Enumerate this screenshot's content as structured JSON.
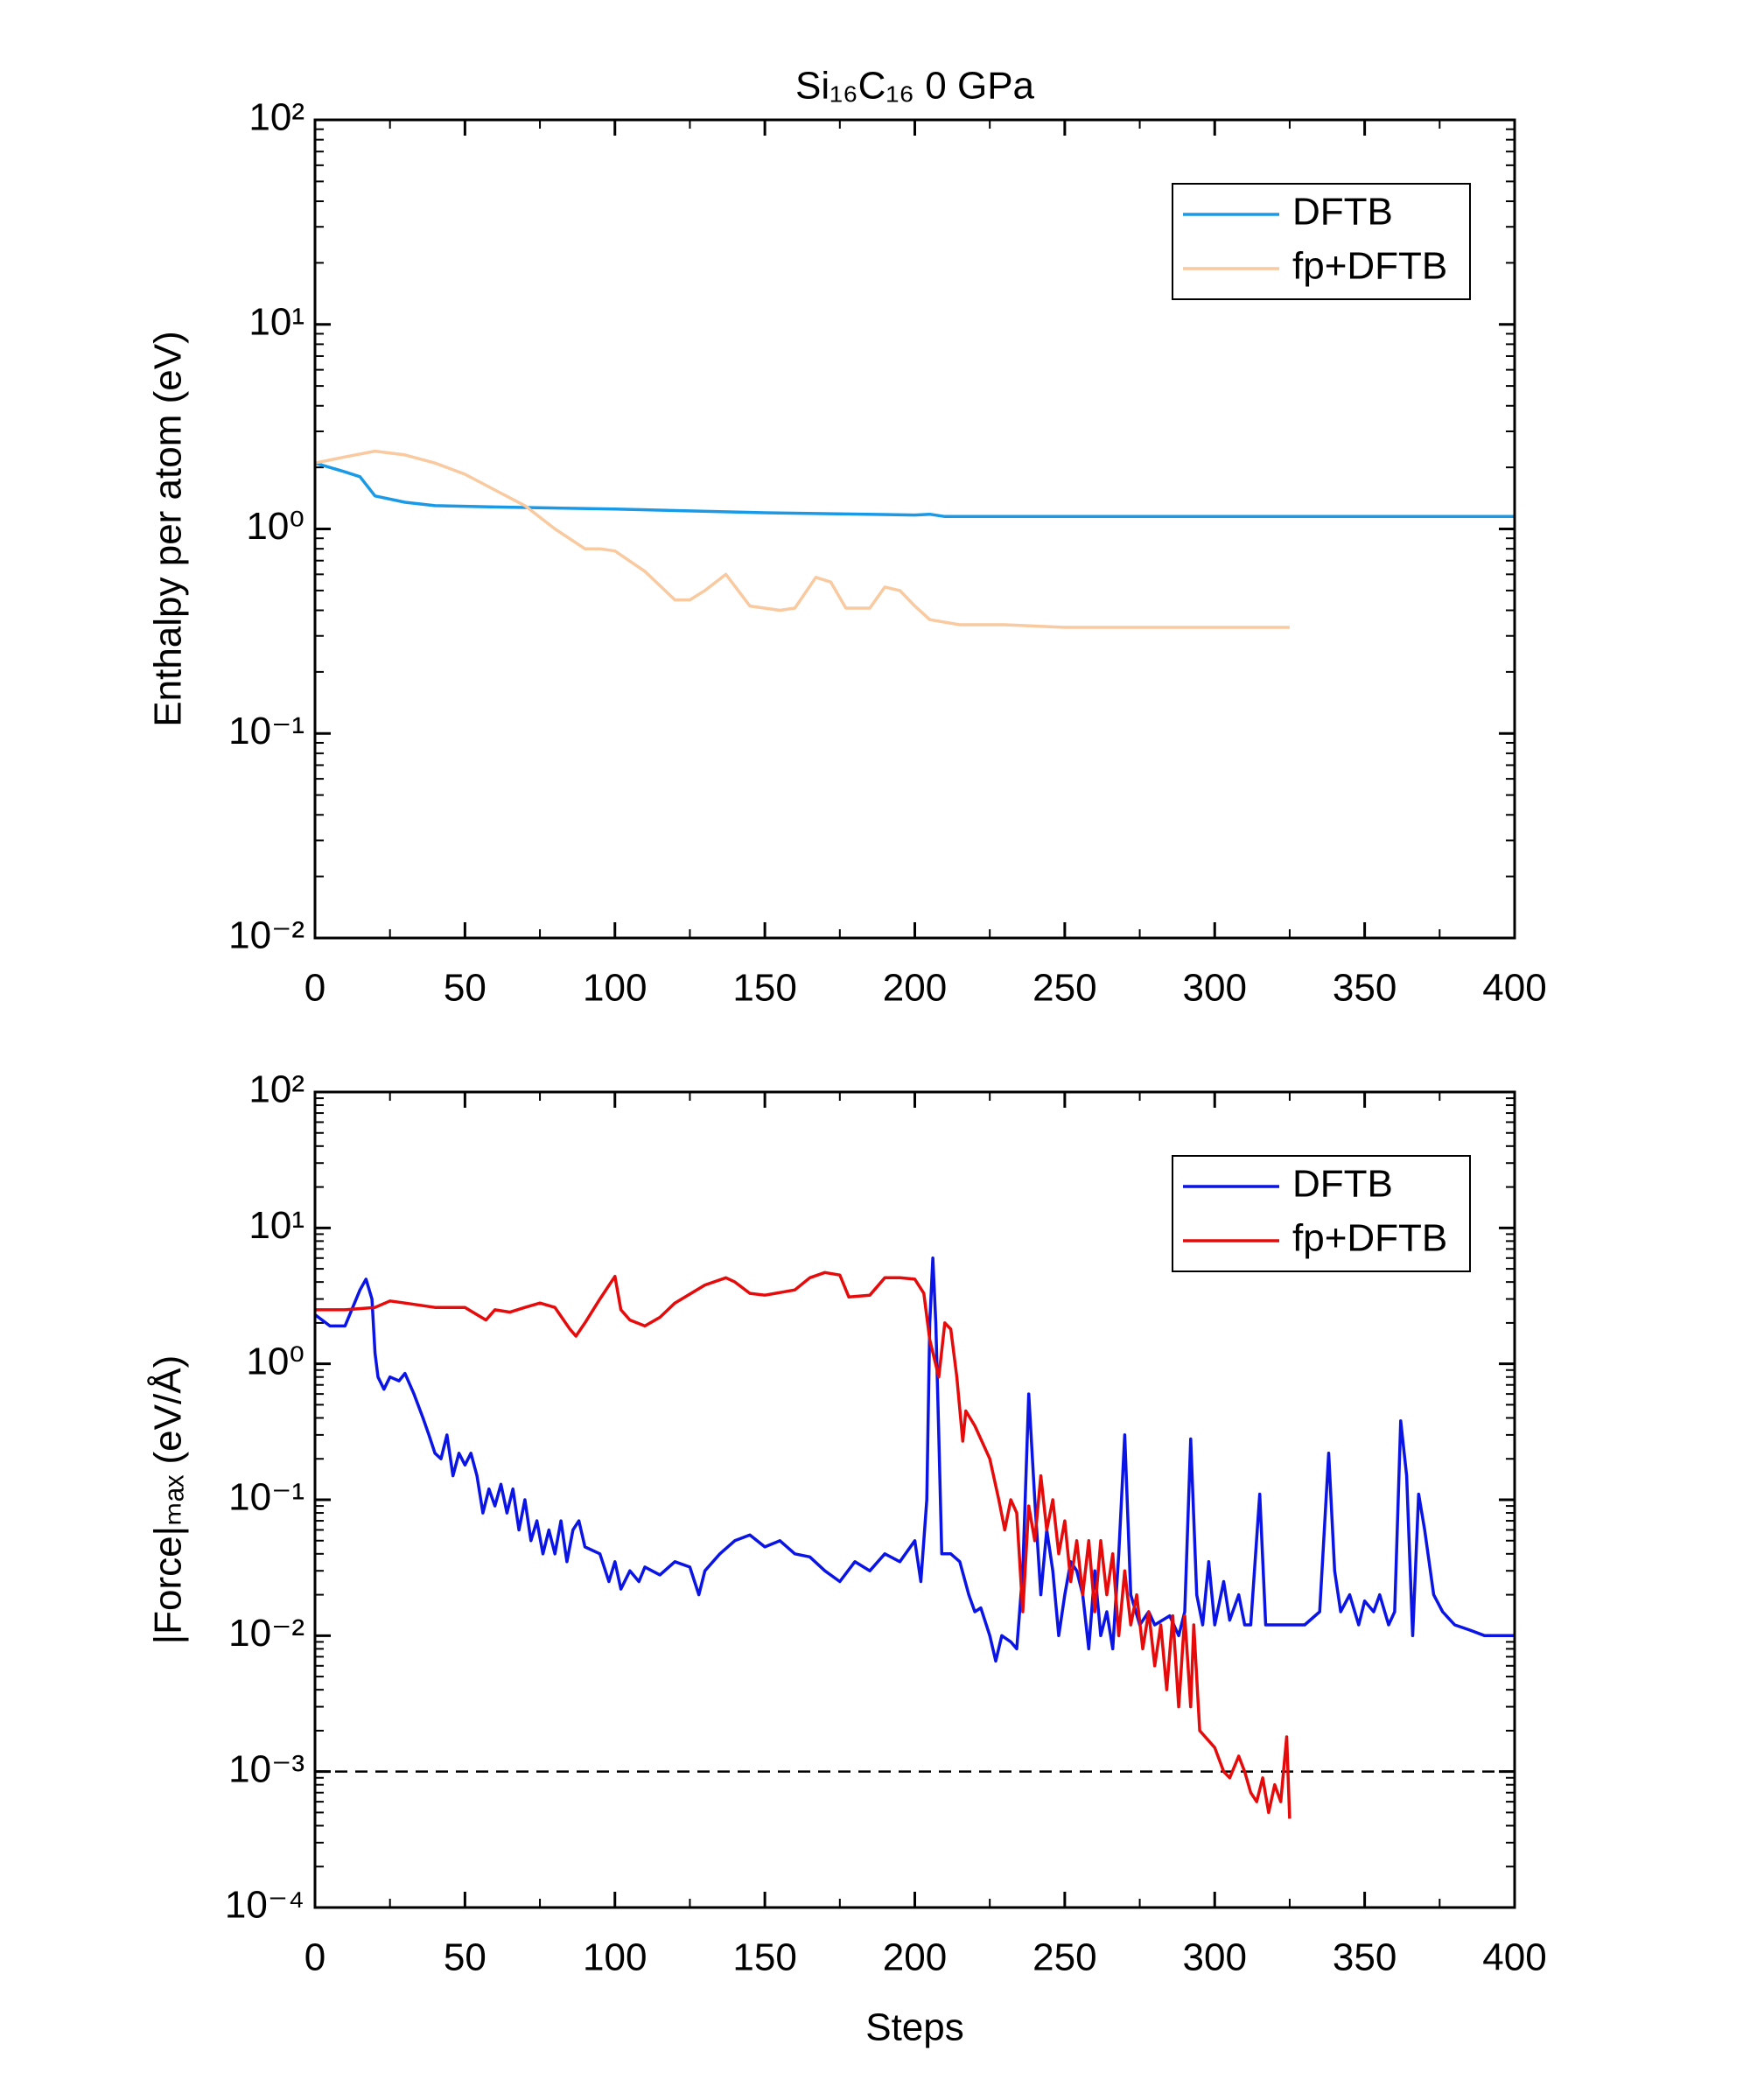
{
  "chart_data": [
    {
      "type": "line",
      "title": "Si₁₆C₁₆ 0 GPa",
      "y_label": "Enthalpy per atom (eV)",
      "log_y": true,
      "legend": "upper right",
      "xlim": [
        0,
        400
      ],
      "xticks": [
        0,
        50,
        100,
        150,
        200,
        250,
        300,
        350,
        400
      ],
      "ylim": [
        0.01,
        100
      ],
      "yticks": [
        {
          "value": 0.01,
          "label": "10⁻²"
        },
        {
          "value": 0.1,
          "label": "10⁻¹"
        },
        {
          "value": 1,
          "label": "10⁰"
        },
        {
          "value": 10,
          "label": "10¹"
        },
        {
          "value": 100,
          "label": "10²"
        }
      ],
      "series": [
        {
          "name": "DFTB",
          "color": "#1a9ae6",
          "x": [
            0,
            10,
            15,
            20,
            30,
            40,
            60,
            100,
            150,
            200,
            205,
            210,
            250,
            300,
            350,
            400
          ],
          "values": [
            2.1,
            1.9,
            1.8,
            1.45,
            1.35,
            1.3,
            1.28,
            1.25,
            1.2,
            1.17,
            1.18,
            1.15,
            1.15,
            1.15,
            1.15,
            1.15
          ]
        },
        {
          "name": "fp+DFTB",
          "color": "#f9c9a0",
          "x": [
            0,
            10,
            20,
            30,
            40,
            50,
            60,
            70,
            80,
            90,
            95,
            100,
            110,
            120,
            125,
            130,
            137,
            145,
            155,
            160,
            167,
            172,
            177,
            185,
            190,
            195,
            200,
            205,
            215,
            230,
            250,
            300,
            325
          ],
          "values": [
            2.1,
            2.25,
            2.4,
            2.3,
            2.1,
            1.85,
            1.55,
            1.3,
            1.0,
            0.8,
            0.8,
            0.78,
            0.62,
            0.45,
            0.45,
            0.5,
            0.6,
            0.42,
            0.4,
            0.41,
            0.58,
            0.55,
            0.41,
            0.41,
            0.52,
            0.5,
            0.42,
            0.36,
            0.34,
            0.34,
            0.33,
            0.33,
            0.33
          ]
        }
      ]
    },
    {
      "type": "line",
      "y_label": "|Force|ₘₐₓ (eV/Å)",
      "x_label": "Steps",
      "log_y": true,
      "legend": "upper right",
      "xlim": [
        0,
        400
      ],
      "xticks": [
        0,
        50,
        100,
        150,
        200,
        250,
        300,
        350,
        400
      ],
      "ylim": [
        0.0001,
        100
      ],
      "yticks": [
        {
          "value": 0.0001,
          "label": "10⁻⁴"
        },
        {
          "value": 0.001,
          "label": "10⁻³"
        },
        {
          "value": 0.01,
          "label": "10⁻²"
        },
        {
          "value": 0.1,
          "label": "10⁻¹"
        },
        {
          "value": 1,
          "label": "10⁰"
        },
        {
          "value": 10,
          "label": "10¹"
        },
        {
          "value": 100,
          "label": "10²"
        }
      ],
      "reference_line": 0.001,
      "series": [
        {
          "name": "DFTB",
          "color": "#0a14e6",
          "x": [
            0,
            5,
            10,
            15,
            17,
            19,
            20,
            21,
            23,
            25,
            28,
            30,
            33,
            36,
            38,
            40,
            42,
            44,
            46,
            48,
            50,
            52,
            54,
            56,
            58,
            60,
            62,
            64,
            66,
            68,
            70,
            72,
            74,
            76,
            78,
            80,
            82,
            84,
            86,
            88,
            90,
            95,
            98,
            100,
            102,
            105,
            108,
            110,
            115,
            120,
            125,
            128,
            130,
            135,
            140,
            145,
            150,
            155,
            160,
            165,
            170,
            175,
            180,
            185,
            190,
            195,
            200,
            202,
            204,
            205,
            206,
            207,
            208,
            209,
            212,
            215,
            218,
            220,
            222,
            225,
            227,
            229,
            232,
            234,
            236,
            238,
            240,
            242,
            244,
            246,
            248,
            250,
            252,
            254,
            256,
            258,
            260,
            262,
            264,
            266,
            268,
            270,
            272,
            275,
            278,
            280,
            285,
            288,
            290,
            292,
            294,
            296,
            298,
            300,
            303,
            305,
            308,
            310,
            312,
            315,
            317,
            320,
            325,
            330,
            335,
            338,
            340,
            342,
            345,
            348,
            350,
            353,
            355,
            358,
            360,
            362,
            364,
            366,
            368,
            370,
            373,
            376,
            380,
            385,
            390,
            395,
            400
          ],
          "values": [
            2.3,
            1.9,
            1.9,
            3.5,
            4.2,
            3,
            1.2,
            0.8,
            0.65,
            0.8,
            0.75,
            0.85,
            0.6,
            0.4,
            0.3,
            0.22,
            0.2,
            0.3,
            0.15,
            0.22,
            0.18,
            0.22,
            0.15,
            0.08,
            0.12,
            0.09,
            0.13,
            0.08,
            0.12,
            0.06,
            0.1,
            0.05,
            0.07,
            0.04,
            0.06,
            0.04,
            0.07,
            0.035,
            0.06,
            0.07,
            0.045,
            0.04,
            0.025,
            0.035,
            0.022,
            0.03,
            0.025,
            0.032,
            0.028,
            0.035,
            0.032,
            0.02,
            0.03,
            0.04,
            0.05,
            0.055,
            0.045,
            0.05,
            0.04,
            0.038,
            0.03,
            0.025,
            0.035,
            0.03,
            0.04,
            0.035,
            0.05,
            0.025,
            0.1,
            2,
            6,
            2,
            0.3,
            0.04,
            0.04,
            0.035,
            0.02,
            0.015,
            0.016,
            0.01,
            0.0065,
            0.01,
            0.009,
            0.008,
            0.03,
            0.6,
            0.1,
            0.02,
            0.06,
            0.03,
            0.01,
            0.02,
            0.035,
            0.03,
            0.02,
            0.008,
            0.03,
            0.01,
            0.015,
            0.008,
            0.04,
            0.3,
            0.02,
            0.012,
            0.015,
            0.012,
            0.014,
            0.01,
            0.015,
            0.28,
            0.02,
            0.012,
            0.035,
            0.012,
            0.025,
            0.013,
            0.02,
            0.012,
            0.012,
            0.11,
            0.012,
            0.012,
            0.012,
            0.012,
            0.015,
            0.22,
            0.03,
            0.015,
            0.02,
            0.012,
            0.018,
            0.015,
            0.02,
            0.012,
            0.015,
            0.38,
            0.15,
            0.01,
            0.11,
            0.06,
            0.02,
            0.015,
            0.012,
            0.011,
            0.01,
            0.01,
            0.01
          ]
        },
        {
          "name": "fp+DFTB",
          "color": "#e60a0a",
          "x": [
            0,
            10,
            20,
            25,
            30,
            40,
            50,
            57,
            60,
            65,
            70,
            75,
            80,
            85,
            87,
            90,
            95,
            100,
            102,
            105,
            110,
            115,
            120,
            130,
            137,
            140,
            145,
            150,
            160,
            165,
            170,
            175,
            178,
            185,
            190,
            195,
            200,
            203,
            205,
            208,
            210,
            212,
            214,
            216,
            217,
            220,
            225,
            228,
            230,
            232,
            234,
            236,
            238,
            240,
            242,
            244,
            246,
            248,
            250,
            252,
            254,
            256,
            258,
            260,
            262,
            264,
            266,
            268,
            270,
            272,
            274,
            276,
            278,
            280,
            282,
            284,
            286,
            288,
            290,
            292,
            293,
            295,
            300,
            303,
            305,
            308,
            310,
            312,
            314,
            316,
            318,
            320,
            322,
            324,
            325
          ],
          "values": [
            2.5,
            2.5,
            2.6,
            2.9,
            2.8,
            2.6,
            2.6,
            2.1,
            2.5,
            2.4,
            2.6,
            2.8,
            2.6,
            1.8,
            1.6,
            2.0,
            3.0,
            4.4,
            2.5,
            2.1,
            1.9,
            2.2,
            2.8,
            3.8,
            4.3,
            4.0,
            3.3,
            3.2,
            3.5,
            4.3,
            4.7,
            4.5,
            3.1,
            3.2,
            4.3,
            4.3,
            4.2,
            3.3,
            1.5,
            0.8,
            2.0,
            1.8,
            0.8,
            0.27,
            0.45,
            0.35,
            0.2,
            0.1,
            0.06,
            0.1,
            0.08,
            0.015,
            0.09,
            0.05,
            0.15,
            0.06,
            0.1,
            0.04,
            0.07,
            0.025,
            0.05,
            0.02,
            0.05,
            0.015,
            0.05,
            0.02,
            0.04,
            0.01,
            0.03,
            0.012,
            0.02,
            0.008,
            0.015,
            0.006,
            0.012,
            0.004,
            0.014,
            0.003,
            0.014,
            0.003,
            0.012,
            0.002,
            0.0015,
            0.001,
            0.0009,
            0.0013,
            0.001,
            0.0007,
            0.0006,
            0.0009,
            0.0005,
            0.0008,
            0.0006,
            0.0018,
            0.00045
          ]
        }
      ]
    }
  ]
}
